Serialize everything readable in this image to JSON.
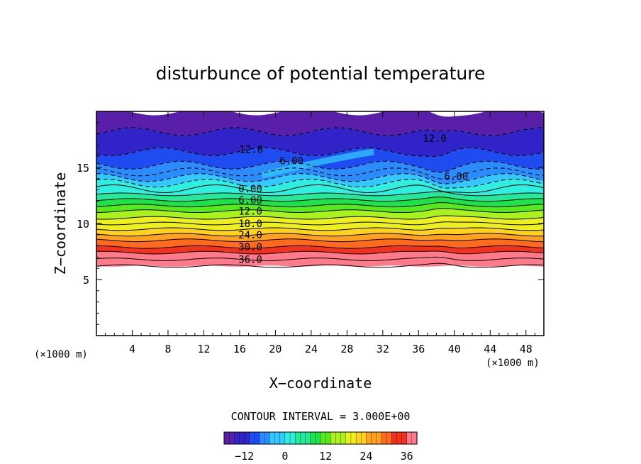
{
  "chart_data": {
    "type": "heatmap",
    "title": "disturbunce of potential temperature",
    "xlabel": "X−coordinate",
    "ylabel": "Z−coordinate",
    "x_units": "(×1000 m)",
    "y_units": "(×1000 m)",
    "xlim": [
      0,
      50
    ],
    "ylim": [
      0,
      20
    ],
    "x_ticks": [
      4,
      8,
      12,
      16,
      20,
      24,
      28,
      32,
      36,
      40,
      44,
      48
    ],
    "y_ticks": [
      5,
      10,
      15
    ],
    "grid": false,
    "colorbar": {
      "ticks": [
        -12,
        0,
        12,
        24,
        36
      ],
      "range": [
        -18,
        39
      ],
      "caption": "CONTOUR INTERVAL = 3.000E+00",
      "colors": [
        "#5a1fa8",
        "#3024c8",
        "#1f4cf0",
        "#2a8cff",
        "#33c8ff",
        "#2ff0e0",
        "#26e89a",
        "#1ee24a",
        "#56ea1e",
        "#aaf21e",
        "#eef01e",
        "#ffd21e",
        "#ffa01e",
        "#ff6a1e",
        "#f2321e",
        "#ff7a8a"
      ]
    },
    "contour_labels": [
      {
        "text": "12.0",
        "x": 17.3,
        "z": 16.6,
        "style": "dashed"
      },
      {
        "text": "6.00",
        "x": 21.8,
        "z": 15.6,
        "style": "dashed"
      },
      {
        "text": "12.0",
        "x": 37.8,
        "z": 17.6,
        "style": "dashed"
      },
      {
        "text": "6.00",
        "x": 40.2,
        "z": 14.2,
        "style": "dashed"
      },
      {
        "text": "0.00",
        "x": 17.2,
        "z": 13.1,
        "style": "solid"
      },
      {
        "text": "6.00",
        "x": 17.2,
        "z": 12.1,
        "style": "solid"
      },
      {
        "text": "12.0",
        "x": 17.2,
        "z": 11.1,
        "style": "solid"
      },
      {
        "text": "18.0",
        "x": 17.2,
        "z": 10.0,
        "style": "solid"
      },
      {
        "text": "24.0",
        "x": 17.2,
        "z": 9.0,
        "style": "solid"
      },
      {
        "text": "30.0",
        "x": 17.2,
        "z": 7.9,
        "style": "solid"
      },
      {
        "text": "36.0",
        "x": 17.2,
        "z": 6.8,
        "style": "solid"
      }
    ],
    "bands": [
      {
        "z0": 18.2,
        "z1": 20.0,
        "value": -15
      },
      {
        "z0": 16.4,
        "z1": 18.2,
        "value": -13
      },
      {
        "z0": 15.2,
        "z1": 16.4,
        "value": -10
      },
      {
        "z0": 14.6,
        "z1": 15.2,
        "value": -6
      },
      {
        "z0": 14.1,
        "z1": 14.6,
        "value": -4
      },
      {
        "z0": 13.6,
        "z1": 14.1,
        "value": -2
      },
      {
        "z0": 13.1,
        "z1": 13.6,
        "value": 0
      },
      {
        "z0": 12.6,
        "z1": 13.1,
        "value": 3
      },
      {
        "z0": 12.1,
        "z1": 12.6,
        "value": 6
      },
      {
        "z0": 11.6,
        "z1": 12.1,
        "value": 9
      },
      {
        "z0": 11.1,
        "z1": 11.6,
        "value": 12
      },
      {
        "z0": 10.5,
        "z1": 11.1,
        "value": 15
      },
      {
        "z0": 10.0,
        "z1": 10.5,
        "value": 18
      },
      {
        "z0": 9.5,
        "z1": 10.0,
        "value": 21
      },
      {
        "z0": 9.0,
        "z1": 9.5,
        "value": 24
      },
      {
        "z0": 8.5,
        "z1": 9.0,
        "value": 27
      },
      {
        "z0": 7.9,
        "z1": 8.5,
        "value": 30
      },
      {
        "z0": 7.4,
        "z1": 7.9,
        "value": 33
      },
      {
        "z0": 6.8,
        "z1": 7.4,
        "value": 36
      },
      {
        "z0": 6.2,
        "z1": 6.8,
        "value": 38
      }
    ],
    "lower_boundary_z": 6.2
  }
}
